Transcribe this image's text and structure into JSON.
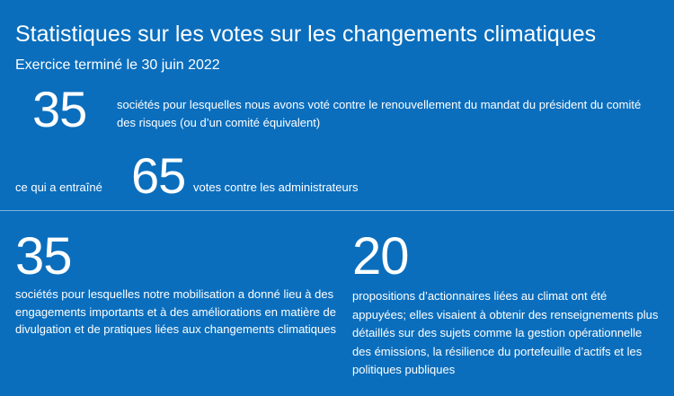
{
  "header": {
    "title": "Statistiques sur les votes sur les changements climatiques",
    "subtitle": "Exercice terminé le 30 juin 2022"
  },
  "stats": {
    "stat1": {
      "value": "35",
      "text": "sociétés pour lesquelles nous avons voté contre le renouvellement du mandat du président du comité des risques (ou d’un comité équivalent)"
    },
    "stat2": {
      "prefix": "ce qui a entraîné",
      "value": "65",
      "suffix": "votes contre les administrateurs"
    },
    "stat3": {
      "value": "35",
      "text": "sociétés pour lesquelles notre mobilisation a donné lieu à des engagements importants et à des améliorations en matière de divulgation et de pratiques liées aux changements climatiques"
    },
    "stat4": {
      "value": "20",
      "text": "propositions d’actionnaires liées au climat ont été appuyées; elles visaient à obtenir des renseignements plus détaillés sur des sujets comme la gestion opérationnelle des émissions, la résilience du portefeuille d’actifs et les politiques publiques"
    }
  },
  "colors": {
    "background": "#0a6ebd",
    "text": "#ffffff",
    "divider": "#7fb2dd"
  }
}
